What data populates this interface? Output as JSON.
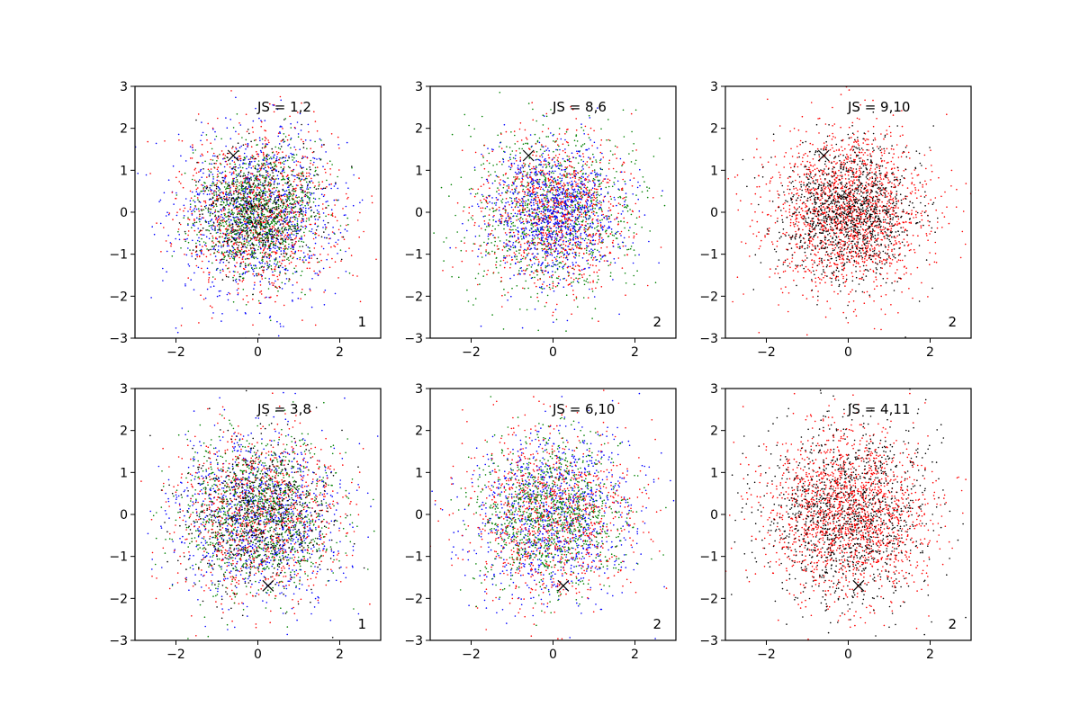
{
  "chart_data": [
    {
      "type": "scatter",
      "annotation": "JS = 1,2",
      "corner_label": "1",
      "xlim": [
        -3,
        3
      ],
      "ylim": [
        -3,
        3
      ],
      "xticks": [
        -2,
        0,
        2
      ],
      "yticks": [
        -3,
        -2,
        -1,
        0,
        1,
        2,
        3
      ],
      "grid": false,
      "marker": {
        "x": -0.6,
        "y": 1.35
      },
      "series": [
        {
          "color": "#0000ff",
          "count": 1000,
          "std": 1.0
        },
        {
          "color": "#ff0000",
          "count": 1000,
          "std": 1.0
        },
        {
          "color": "#008000",
          "count": 1000,
          "std": 0.75
        },
        {
          "color": "#000000",
          "count": 500,
          "std": 0.75
        }
      ]
    },
    {
      "type": "scatter",
      "annotation": "JS = 8,6",
      "corner_label": "2",
      "xlim": [
        -3,
        3
      ],
      "ylim": [
        -3,
        3
      ],
      "xticks": [
        -2,
        0,
        2
      ],
      "yticks": [
        -3,
        -2,
        -1,
        0,
        1,
        2,
        3
      ],
      "grid": false,
      "marker": {
        "x": -0.6,
        "y": 1.35
      },
      "series": [
        {
          "color": "#008000",
          "count": 1000,
          "std": 1.0
        },
        {
          "color": "#ff0000",
          "count": 1000,
          "std": 0.9
        },
        {
          "color": "#0000ff",
          "count": 1000,
          "std": 0.8
        }
      ]
    },
    {
      "type": "scatter",
      "annotation": "JS = 9,10",
      "corner_label": "2",
      "xlim": [
        -3,
        3
      ],
      "ylim": [
        -3,
        3
      ],
      "xticks": [
        -2,
        0,
        2
      ],
      "yticks": [
        -3,
        -2,
        -1,
        0,
        1,
        2,
        3
      ],
      "grid": false,
      "marker": {
        "x": -0.6,
        "y": 1.35
      },
      "series": [
        {
          "color": "#ff0000",
          "count": 1700,
          "std": 1.0
        },
        {
          "color": "#000000",
          "count": 1200,
          "std": 0.8
        }
      ]
    },
    {
      "type": "scatter",
      "annotation": "JS = 3,8",
      "corner_label": "1",
      "xlim": [
        -3,
        3
      ],
      "ylim": [
        -3,
        3
      ],
      "xticks": [
        -2,
        0,
        2
      ],
      "yticks": [
        -3,
        -2,
        -1,
        0,
        1,
        2,
        3
      ],
      "grid": false,
      "marker": {
        "x": 0.25,
        "y": -1.7
      },
      "series": [
        {
          "color": "#0000ff",
          "count": 1000,
          "std": 1.0
        },
        {
          "color": "#ff0000",
          "count": 1000,
          "std": 1.0
        },
        {
          "color": "#008000",
          "count": 1000,
          "std": 0.95
        },
        {
          "color": "#000000",
          "count": 600,
          "std": 0.9
        }
      ]
    },
    {
      "type": "scatter",
      "annotation": "JS = 6,10",
      "corner_label": "2",
      "xlim": [
        -3,
        3
      ],
      "ylim": [
        -3,
        3
      ],
      "xticks": [
        -2,
        0,
        2
      ],
      "yticks": [
        -3,
        -2,
        -1,
        0,
        1,
        2,
        3
      ],
      "grid": false,
      "marker": {
        "x": 0.25,
        "y": -1.7
      },
      "series": [
        {
          "color": "#0000ff",
          "count": 1000,
          "std": 1.0
        },
        {
          "color": "#ff0000",
          "count": 1000,
          "std": 1.0
        },
        {
          "color": "#008000",
          "count": 1000,
          "std": 0.9
        }
      ]
    },
    {
      "type": "scatter",
      "annotation": "JS = 4,11",
      "corner_label": "2",
      "xlim": [
        -3,
        3
      ],
      "ylim": [
        -3,
        3
      ],
      "xticks": [
        -2,
        0,
        2
      ],
      "yticks": [
        -3,
        -2,
        -1,
        0,
        1,
        2,
        3
      ],
      "grid": false,
      "marker": {
        "x": 0.25,
        "y": -1.7
      },
      "series": [
        {
          "color": "#ff0000",
          "count": 1700,
          "std": 1.0
        },
        {
          "color": "#000000",
          "count": 1200,
          "std": 1.0
        }
      ]
    }
  ]
}
